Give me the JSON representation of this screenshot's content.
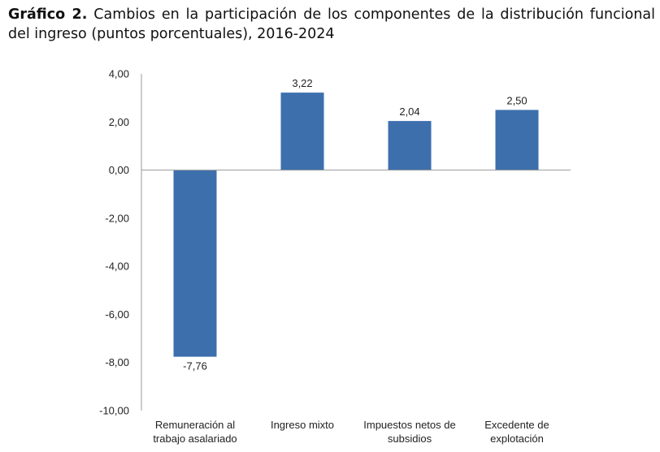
{
  "title": {
    "label": "Gráfico 2.",
    "text": "Cambios en la participación de los componentes de la distribución funcional del ingreso (puntos porcentuales), 2016-2024"
  },
  "chart_data": {
    "type": "bar",
    "title": "Gráfico 2. Cambios en la participación de los componentes de la distribución funcional del ingreso (puntos porcentuales), 2016-2024",
    "categories": [
      [
        "Remuneración al",
        "trabajo asalariado"
      ],
      [
        "Ingreso mixto"
      ],
      [
        "Impuestos netos de",
        "subsidios"
      ],
      [
        "Excedente de",
        "explotación"
      ]
    ],
    "values": [
      -7.76,
      3.22,
      2.04,
      2.5
    ],
    "data_labels": [
      "-7,76",
      "3,22",
      "2,04",
      "2,50"
    ],
    "ylim": [
      -10,
      4
    ],
    "yticks": [
      4,
      2,
      0,
      -2,
      -4,
      -6,
      -8,
      -10
    ],
    "ytick_labels": [
      "4,00",
      "2,00",
      "0,00",
      "-2,00",
      "-4,00",
      "-6,00",
      "-8,00",
      "-10,00"
    ],
    "grid": false,
    "bar_color": "#3d6fad",
    "xlabel": "",
    "ylabel": ""
  }
}
